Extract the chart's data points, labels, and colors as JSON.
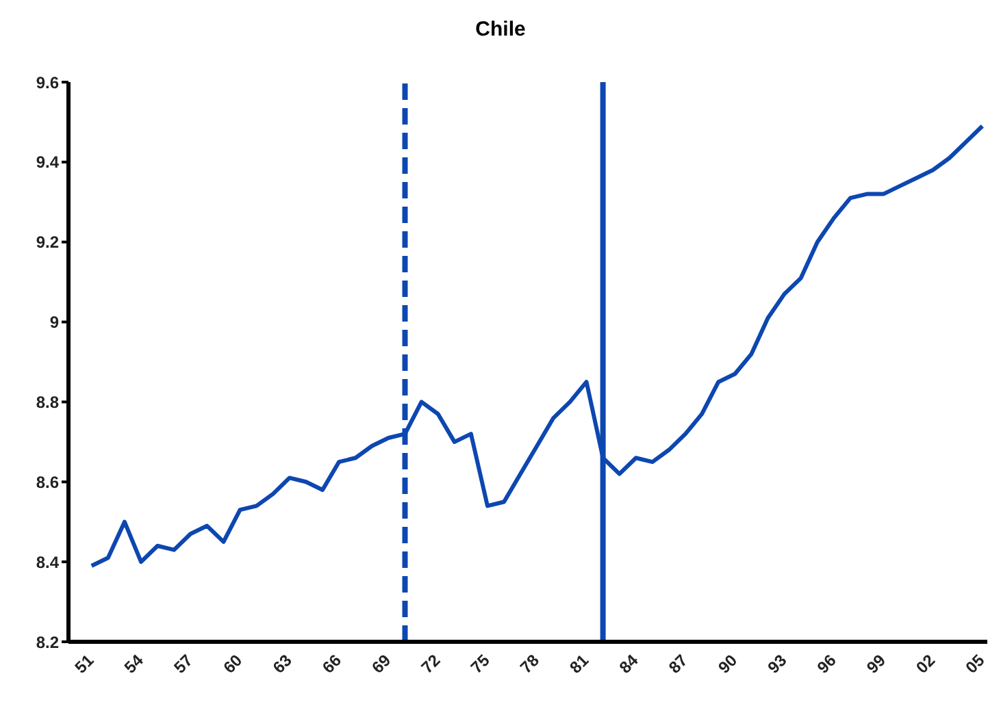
{
  "chart_data": {
    "type": "line",
    "title": "Chile",
    "x": [
      1951,
      1952,
      1953,
      1954,
      1955,
      1956,
      1957,
      1958,
      1959,
      1960,
      1961,
      1962,
      1963,
      1964,
      1965,
      1966,
      1967,
      1968,
      1969,
      1970,
      1971,
      1972,
      1973,
      1974,
      1975,
      1976,
      1977,
      1978,
      1979,
      1980,
      1981,
      1982,
      1983,
      1984,
      1985,
      1986,
      1987,
      1988,
      1989,
      1990,
      1991,
      1992,
      1993,
      1994,
      1995,
      1996,
      1997,
      1998,
      1999,
      2000,
      2001,
      2002,
      2003,
      2004,
      2005
    ],
    "series": [
      {
        "color": "#0d47b0",
        "values": [
          8.39,
          8.41,
          8.5,
          8.4,
          8.44,
          8.43,
          8.47,
          8.49,
          8.45,
          8.53,
          8.54,
          8.57,
          8.61,
          8.6,
          8.58,
          8.65,
          8.66,
          8.69,
          8.71,
          8.72,
          8.8,
          8.77,
          8.7,
          8.72,
          8.54,
          8.55,
          8.62,
          8.69,
          8.76,
          8.8,
          8.85,
          8.66,
          8.62,
          8.66,
          8.65,
          8.68,
          8.72,
          8.77,
          8.85,
          8.87,
          8.92,
          9.01,
          9.07,
          9.11,
          9.2,
          9.26,
          9.31,
          9.32,
          9.32,
          9.34,
          9.36,
          9.38,
          9.41,
          9.45,
          9.49
        ]
      }
    ],
    "xlim": [
      1949.6,
      2005.3
    ],
    "xticks": [
      {
        "value": 1951,
        "label": "51"
      },
      {
        "value": 1954,
        "label": "54"
      },
      {
        "value": 1957,
        "label": "57"
      },
      {
        "value": 1960,
        "label": "60"
      },
      {
        "value": 1963,
        "label": "63"
      },
      {
        "value": 1966,
        "label": "66"
      },
      {
        "value": 1969,
        "label": "69"
      },
      {
        "value": 1972,
        "label": "72"
      },
      {
        "value": 1975,
        "label": "75"
      },
      {
        "value": 1978,
        "label": "78"
      },
      {
        "value": 1981,
        "label": "81"
      },
      {
        "value": 1984,
        "label": "84"
      },
      {
        "value": 1987,
        "label": "87"
      },
      {
        "value": 1990,
        "label": "90"
      },
      {
        "value": 1993,
        "label": "93"
      },
      {
        "value": 1996,
        "label": "96"
      },
      {
        "value": 1999,
        "label": "99"
      },
      {
        "value": 2002,
        "label": "02"
      },
      {
        "value": 2005,
        "label": "05"
      }
    ],
    "ylim": [
      8.2,
      9.6
    ],
    "yticks": [
      8.2,
      8.4,
      8.6,
      8.8,
      9,
      9.2,
      9.4,
      9.6
    ],
    "ref_lines": [
      {
        "axis": "x",
        "value": 1970,
        "color": "#0d47b0",
        "line_style": "dashed"
      },
      {
        "axis": "x",
        "value": 1982,
        "color": "#0d47b0",
        "line_style": "solid"
      }
    ],
    "grid": false,
    "legend": false,
    "marker": "none",
    "line_style": "solid"
  }
}
